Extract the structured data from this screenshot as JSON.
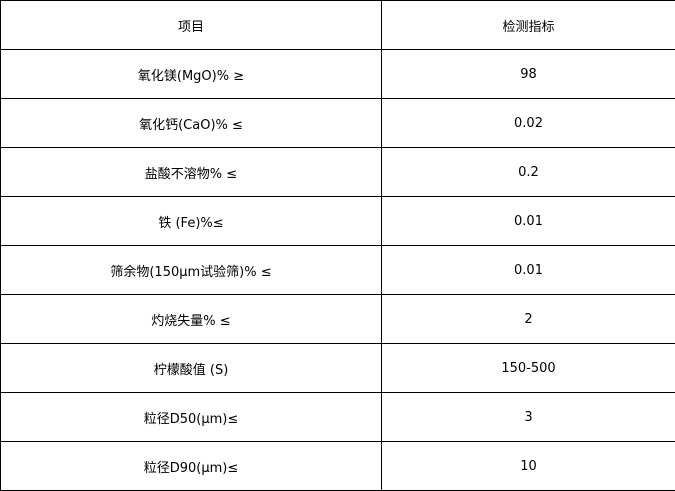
{
  "table": {
    "header": [
      "项目",
      "检测指标"
    ],
    "rows": [
      [
        "氧化镁(MgO)% ≥",
        "98"
      ],
      [
        "氧化钙(CaO)% ≤",
        "0.02"
      ],
      [
        "盐酸不溶物% ≤",
        "0.2"
      ],
      [
        "铁 (Fe)%≤",
        "0.01"
      ],
      [
        "筛余物(150μm试验筛)% ≤",
        "0.01"
      ],
      [
        "灼烧失量% ≤",
        "2"
      ],
      [
        "柠檬酸值 (S)",
        "150-500"
      ],
      [
        "粒径D50(μm)≤",
        "3"
      ],
      [
        "粒径D90(μm)≤",
        "10"
      ]
    ]
  }
}
